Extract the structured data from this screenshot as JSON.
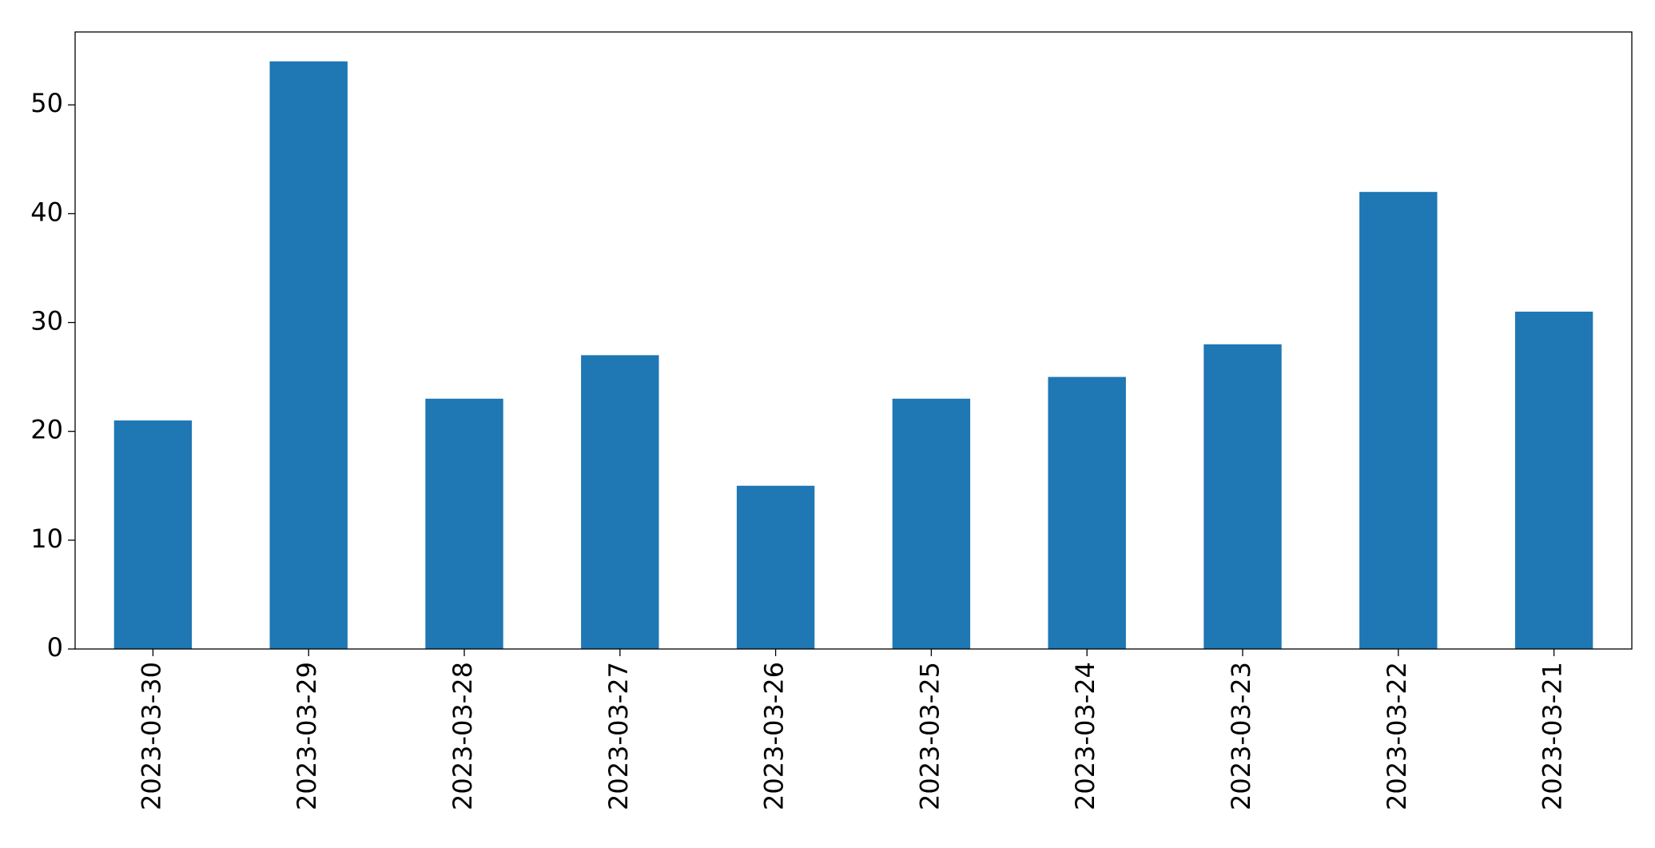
{
  "chart_data": {
    "type": "bar",
    "categories": [
      "2023-03-30",
      "2023-03-29",
      "2023-03-28",
      "2023-03-27",
      "2023-03-26",
      "2023-03-25",
      "2023-03-24",
      "2023-03-23",
      "2023-03-22",
      "2023-03-21"
    ],
    "values": [
      21,
      54,
      23,
      27,
      15,
      23,
      25,
      28,
      42,
      31
    ],
    "color": "#1f77b4",
    "ylim": [
      0,
      56.7
    ],
    "yticks": [
      0,
      10,
      20,
      30,
      40,
      50
    ],
    "grid": false
  }
}
